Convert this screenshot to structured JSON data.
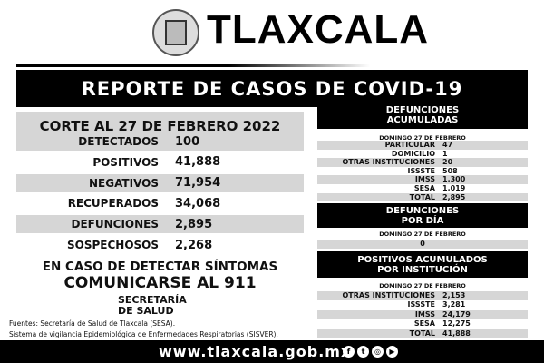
{
  "header": {
    "brand": "TLAXCALA",
    "title": "REPORTE DE CASOS DE COVID-19"
  },
  "left": {
    "corte": "CORTE AL 27 DE FEBRERO 2022",
    "rows": [
      {
        "label": "DETECTADOS",
        "value": "100"
      },
      {
        "label": "POSITIVOS",
        "value": "41,888"
      },
      {
        "label": "NEGATIVOS",
        "value": "71,954"
      },
      {
        "label": "RECUPERADOS",
        "value": "34,068"
      },
      {
        "label": "DEFUNCIONES",
        "value": "2,895"
      },
      {
        "label": "SOSPECHOSOS",
        "value": "2,268"
      }
    ],
    "msg1": "EN CASO DE DETECTAR SÍNTOMAS",
    "msg2": "COMUNICARSE AL 911",
    "sec1": "SECRETARÍA",
    "sec2": "DE SALUD",
    "src1": "Fuentes:  Secretaría de Salud de Tlaxcala (SESA).",
    "src2": "Sistema de vigilancia Epidemiológica de Enfermedades Respiratorias (SISVER)."
  },
  "def_acum": {
    "title1": "DEFUNCIONES",
    "title2": "ACUMULADAS",
    "date": "DOMINGO 27 DE FEBRERO",
    "rows": [
      {
        "label": "PARTICULAR",
        "value": "47"
      },
      {
        "label": "DOMICILIO",
        "value": "1"
      },
      {
        "label": "OTRAS INSTITUCIONES",
        "value": "20"
      },
      {
        "label": "ISSSTE",
        "value": "508"
      },
      {
        "label": "IMSS",
        "value": "1,300"
      },
      {
        "label": "SESA",
        "value": "1,019"
      },
      {
        "label": "TOTAL",
        "value": "2,895"
      }
    ]
  },
  "def_dia": {
    "title1": "DEFUNCIONES",
    "title2": "POR DÍA",
    "date": "DOMINGO 27 DE FEBRERO",
    "value": "0"
  },
  "pos_inst": {
    "title1": "POSITIVOS ACUMULADOS",
    "title2": "POR INSTITUCIÓN",
    "date": "DOMINGO 27 DE FEBRERO",
    "rows": [
      {
        "label": "OTRAS INSTITUCIONES",
        "value": "2,153"
      },
      {
        "label": "ISSSTE",
        "value": "3,281"
      },
      {
        "label": "IMSS",
        "value": "24,179"
      },
      {
        "label": "SESA",
        "value": "12,275"
      },
      {
        "label": "TOTAL",
        "value": "41,888"
      }
    ]
  },
  "footer": {
    "url": "www.tlaxcala.gob.mx",
    "social": [
      "facebook-icon",
      "twitter-icon",
      "instagram-icon",
      "youtube-icon"
    ]
  }
}
